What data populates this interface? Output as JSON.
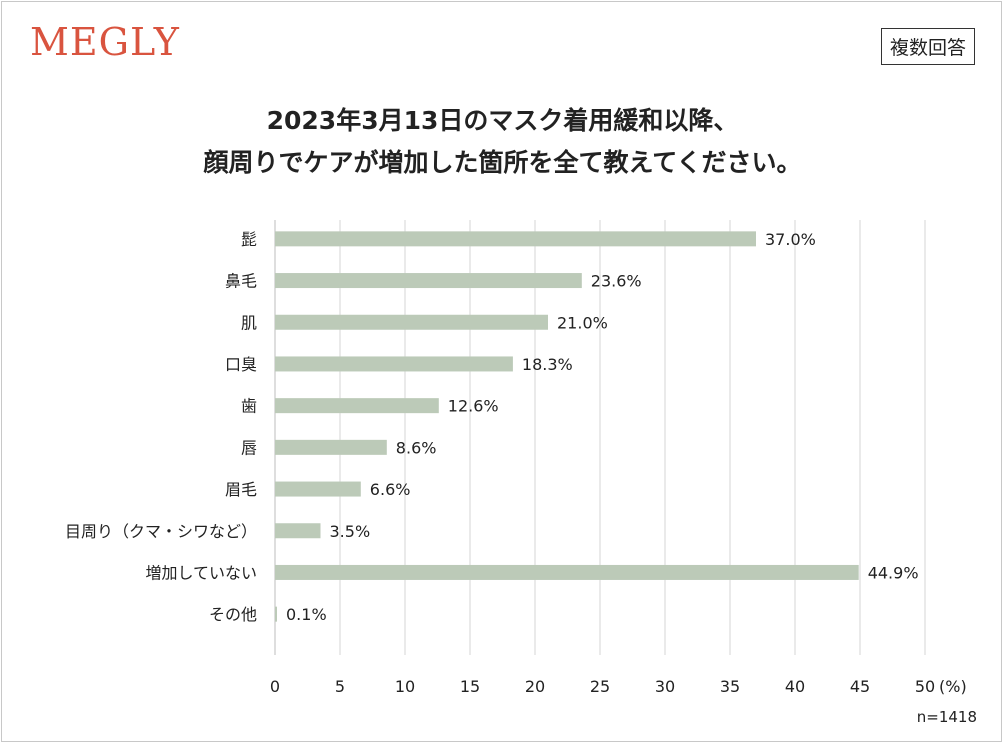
{
  "brand": {
    "logo_text": "MEGLY"
  },
  "badge": {
    "label": "複数回答"
  },
  "title": {
    "line1": "2023年3月13日のマスク着用緩和以降、",
    "line2": "顔周りでケアが増加した箇所を全て教えてください。"
  },
  "sample_note": "n=1418",
  "chart_data": {
    "type": "bar",
    "orientation": "horizontal",
    "title": "2023年3月13日のマスク着用緩和以降、顔周りでケアが増加した箇所を全て教えてください。",
    "categories": [
      "髭",
      "鼻毛",
      "肌",
      "口臭",
      "歯",
      "唇",
      "眉毛",
      "目周り（クマ・シワなど）",
      "増加していない",
      "その他"
    ],
    "values": [
      37.0,
      23.6,
      21.0,
      18.3,
      12.6,
      8.6,
      6.6,
      3.5,
      44.9,
      0.1
    ],
    "value_labels": [
      "37.0%",
      "23.6%",
      "21.0%",
      "18.3%",
      "12.6%",
      "8.6%",
      "6.6%",
      "3.5%",
      "44.9%",
      "0.1%"
    ],
    "xlim": [
      0,
      50
    ],
    "xticks": [
      0,
      5,
      10,
      15,
      20,
      25,
      30,
      35,
      40,
      45,
      50
    ],
    "xtick_labels": [
      "0",
      "5",
      "10",
      "15",
      "20",
      "25",
      "30",
      "35",
      "40",
      "45",
      "50"
    ],
    "xlabel": "(%)",
    "grid": true,
    "bar_color": "#bccab8",
    "grid_color": "#d6d6d6"
  }
}
